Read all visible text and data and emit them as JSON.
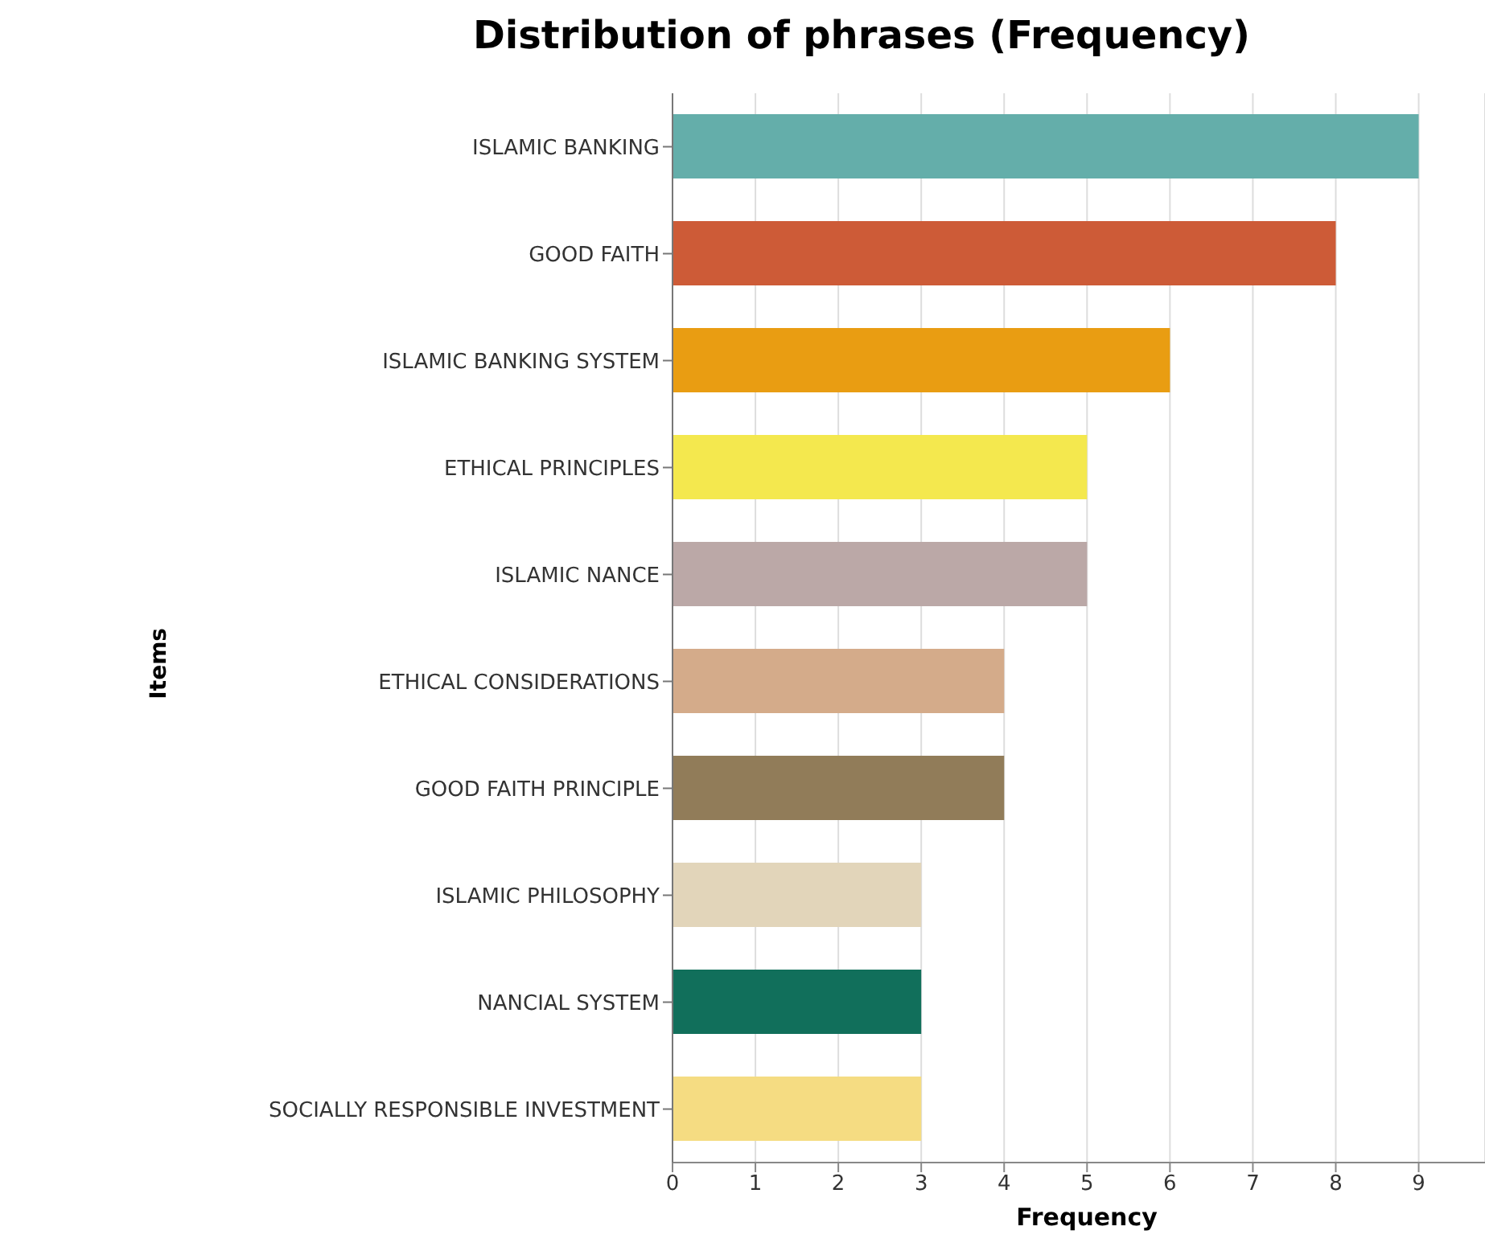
{
  "chart_data": {
    "type": "bar",
    "orientation": "horizontal",
    "title": "Distribution of phrases (Frequency)",
    "xlabel": "Frequency",
    "ylabel": "Items",
    "categories": [
      "ISLAMIC BANKING",
      "GOOD FAITH",
      "ISLAMIC BANKING SYSTEM",
      "ETHICAL PRINCIPLES",
      "ISLAMIC NANCE",
      "ETHICAL CONSIDERATIONS",
      "GOOD FAITH PRINCIPLE",
      "ISLAMIC PHILOSOPHY",
      "NANCIAL SYSTEM",
      "SOCIALLY RESPONSIBLE INVESTMENT"
    ],
    "values": [
      9,
      8,
      6,
      5,
      5,
      4,
      4,
      3,
      3,
      3
    ],
    "colors": [
      "#64aeaa",
      "#cd5b37",
      "#e99d12",
      "#f4e84e",
      "#bba8a7",
      "#d4ab8a",
      "#917c59",
      "#e2d5ba",
      "#116f5b",
      "#f5dc82"
    ],
    "xlim": [
      0,
      9.8
    ],
    "xticks": [
      0,
      1,
      2,
      3,
      4,
      5,
      6,
      7,
      8,
      9
    ],
    "grid": "x",
    "legend": false
  }
}
